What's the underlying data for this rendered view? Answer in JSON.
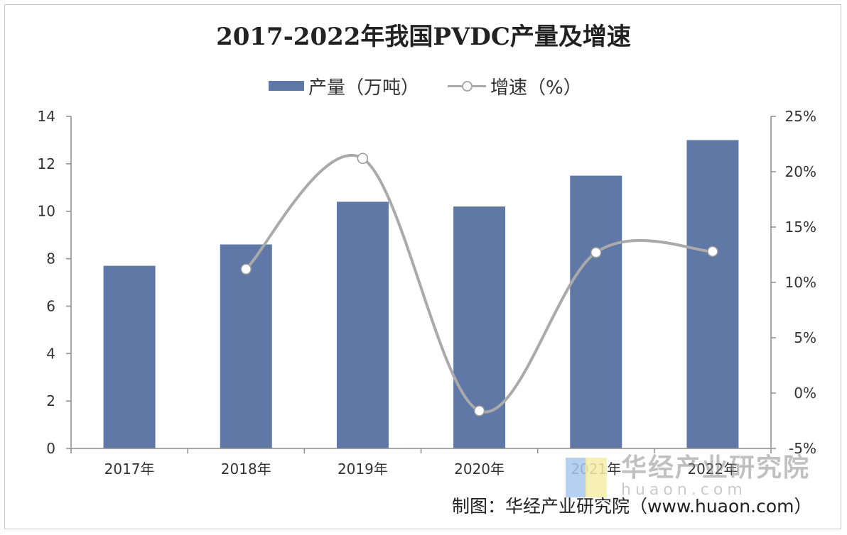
{
  "chart_data": {
    "type": "bar",
    "title": "2017-2022年我国PVDC产量及增速",
    "categories": [
      "2017年",
      "2018年",
      "2019年",
      "2020年",
      "2021年",
      "2022年"
    ],
    "series": [
      {
        "name": "产量（万吨）",
        "type": "bar",
        "axis": "left",
        "color": "#5f78a5",
        "values": [
          7.7,
          8.6,
          10.4,
          10.2,
          11.5,
          13.0
        ]
      },
      {
        "name": "增速（%）",
        "type": "line",
        "axis": "right",
        "color": "#aaaaaa",
        "smooth": true,
        "markers": "hollow-circle",
        "values": [
          null,
          11.2,
          21.2,
          -1.6,
          12.7,
          12.8
        ]
      }
    ],
    "y_left": {
      "ylim": [
        0,
        14
      ],
      "ticks": [
        0,
        2,
        4,
        6,
        8,
        10,
        12,
        14
      ],
      "tick_labels": [
        "0",
        "2",
        "4",
        "6",
        "8",
        "10",
        "12",
        "14"
      ]
    },
    "y_right": {
      "ylim": [
        -5,
        25
      ],
      "ticks": [
        -5,
        0,
        5,
        10,
        15,
        20,
        25
      ],
      "tick_labels": [
        "-5%",
        "0%",
        "5%",
        "10%",
        "15%",
        "20%",
        "25%"
      ]
    },
    "legend": {
      "position": "top-center",
      "entries": [
        "产量（万吨）",
        "增速（%）"
      ]
    },
    "grid": false
  },
  "watermark": {
    "name": "华经产业研究院",
    "url": "huaon.com"
  },
  "source_text": "制图：华经产业研究院（www.huaon.com）"
}
